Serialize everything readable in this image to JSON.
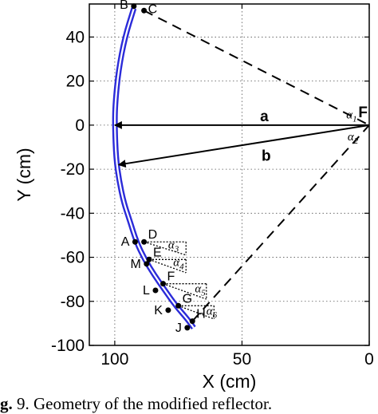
{
  "caption": {
    "prefix": "g.",
    "text": " 9. Geometry of the modified reflector."
  },
  "chart_data": {
    "type": "line",
    "xlabel": "X (cm)",
    "ylabel": "Y (cm)",
    "xlim": [
      110,
      0
    ],
    "ylim": [
      -100,
      55
    ],
    "x_reversed": true,
    "xticks": [
      100,
      50,
      0
    ],
    "yticks": [
      40,
      20,
      0,
      -20,
      -40,
      -60,
      -80,
      -100
    ],
    "xtick_labels": [
      "100",
      "50",
      "0"
    ],
    "ytick_labels": [
      "40",
      "20",
      "0",
      "-20",
      "-40",
      "-60",
      "-80",
      "-100"
    ],
    "grid": true,
    "grid_style": "dotted",
    "reflector_color": "#2b2bd9",
    "reflector_curve": {
      "x": [
        92.5,
        96,
        98.5,
        99.8,
        100,
        99.5,
        98.3,
        96.5,
        94.2,
        91.5,
        88.2,
        84.5,
        80.3,
        76,
        71.5,
        69
      ],
      "y": [
        53,
        40,
        25,
        10,
        0,
        -15,
        -25,
        -35,
        -43,
        -53,
        -61,
        -68,
        -75,
        -82,
        -88,
        -92
      ]
    },
    "points": [
      {
        "label": "B",
        "x": 92.5,
        "y": 54
      },
      {
        "label": "C",
        "x": 88.5,
        "y": 52
      },
      {
        "label": "D",
        "x": 88.5,
        "y": -53
      },
      {
        "label": "A",
        "x": 92,
        "y": -53
      },
      {
        "label": "E",
        "x": 86.5,
        "y": -61
      },
      {
        "label": "M",
        "x": 87.5,
        "y": -63
      },
      {
        "label": "F",
        "x": 81,
        "y": -72
      },
      {
        "label": "L",
        "x": 84,
        "y": -75
      },
      {
        "label": "G",
        "x": 75,
        "y": -82
      },
      {
        "label": "K",
        "x": 79,
        "y": -84
      },
      {
        "label": "H",
        "x": 69.5,
        "y": -89
      },
      {
        "label": "J",
        "x": 71.5,
        "y": -92
      }
    ],
    "focus": {
      "label": "F",
      "x": 0,
      "y": 0
    },
    "vectors": [
      {
        "label": "a",
        "from": [
          0,
          0
        ],
        "to": [
          100,
          0
        ]
      },
      {
        "label": "b",
        "from": [
          0,
          0
        ],
        "to": [
          98.5,
          -18
        ]
      }
    ],
    "edge_rays": [
      {
        "from": [
          88.5,
          52
        ],
        "to": [
          0,
          0
        ]
      },
      {
        "from": [
          69.5,
          -89
        ],
        "to": [
          0,
          0
        ]
      }
    ],
    "angle_labels": [
      {
        "symbol": "α",
        "sub": "1",
        "x": 9,
        "y": 3
      },
      {
        "symbol": "α",
        "sub": "2",
        "x": 8.5,
        "y": -7
      },
      {
        "symbol": "α",
        "sub": "3",
        "x": 79,
        "y": -56
      },
      {
        "symbol": "α",
        "sub": "4",
        "x": 77,
        "y": -64
      },
      {
        "symbol": "α",
        "sub": "5",
        "x": 68.5,
        "y": -76
      },
      {
        "symbol": "α",
        "sub": "6",
        "x": 64,
        "y": -86
      }
    ],
    "sector_fans": [
      {
        "apex": [
          88.5,
          -53
        ],
        "to_x": 72,
        "y_top": -53,
        "y_bottom": -59
      },
      {
        "apex": [
          86.5,
          -61
        ],
        "to_x": 72,
        "y_top": -61,
        "y_bottom": -67
      },
      {
        "apex": [
          81,
          -72
        ],
        "to_x": 64,
        "y_top": -72,
        "y_bottom": -79
      },
      {
        "apex": [
          75,
          -82
        ],
        "to_x": 61,
        "y_top": -82,
        "y_bottom": -88
      }
    ]
  }
}
